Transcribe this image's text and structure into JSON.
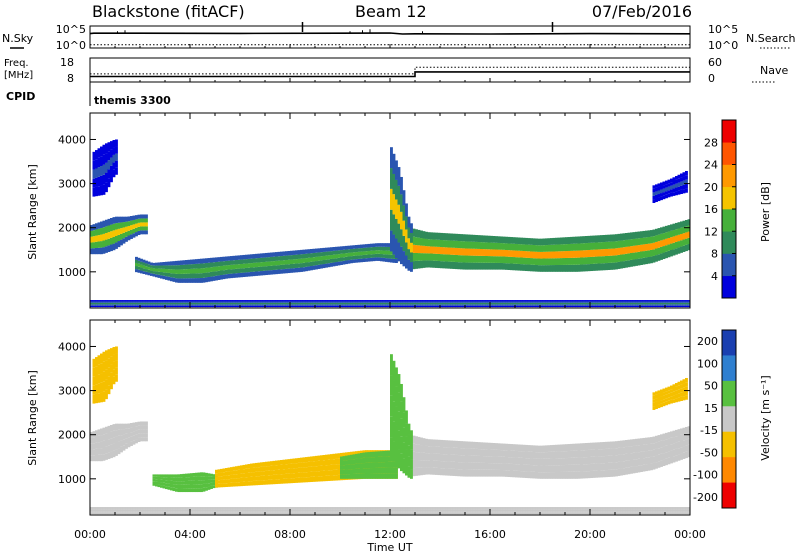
{
  "header": {
    "station": "Blackstone (fitACF)",
    "beam": "Beam 12",
    "date": "07/Feb/2016"
  },
  "status_panel": {
    "left_labels": {
      "nsky": "N.Sky",
      "freq_line1": "Freq.",
      "freq_line2": "[MHz]",
      "cpid": "CPID"
    },
    "right_labels": {
      "nsearch": "N.Search",
      "nave": "Nave"
    },
    "noise_ticks": {
      "top": "10^5",
      "bottom": "10^0"
    },
    "freq_ticks": [
      "18",
      "8"
    ],
    "nave_ticks": [
      "60",
      "0"
    ],
    "cpid_text": "themis 3300"
  },
  "colors": {
    "power": [
      "#0000dd",
      "#2a55b0",
      "#2f8a5a",
      "#46b03a",
      "#f5c400",
      "#ff9900",
      "#ff5500",
      "#ee0000"
    ],
    "velocity": [
      "#1a3fb0",
      "#2f7fcf",
      "#58c040",
      "#c8c8c8",
      "#f5c000",
      "#ff8800",
      "#ee0000"
    ]
  },
  "chart_data": [
    {
      "type": "line",
      "name": "noise-and-freq-status",
      "x_range_hours": [
        0,
        24
      ],
      "series": [
        {
          "name": "N.Sky",
          "x": [
            0.0,
            0.15,
            2.0,
            6.0,
            10.0,
            12.0,
            12.5,
            13.0,
            16.0,
            20.0,
            24.0
          ],
          "y": [
            3.6,
            3.7,
            3.7,
            3.65,
            3.7,
            3.75,
            3.5,
            3.55,
            3.5,
            3.6,
            3.55
          ]
        },
        {
          "name": "N.Search",
          "x": [
            0.0,
            24.0
          ],
          "y": [
            0.8,
            0.8
          ]
        },
        {
          "name": "Freq. [MHz]",
          "x": [
            0.0,
            0.1,
            13.0,
            13.0,
            24.0
          ],
          "y": [
            10.5,
            10.5,
            10.5,
            12.6,
            12.6
          ]
        },
        {
          "name": "Nave",
          "x": [
            0.0,
            13.0,
            13.0,
            24.0
          ],
          "y": [
            22,
            22,
            40,
            40
          ]
        }
      ]
    },
    {
      "type": "heatmap",
      "name": "power",
      "xlabel": "",
      "ylabel": "Slant Range [km]",
      "xlim": [
        0,
        24
      ],
      "ylim": [
        180,
        4600
      ],
      "x_ticks": [
        "00:00",
        "04:00",
        "08:00",
        "12:00",
        "16:00",
        "20:00",
        "00:00"
      ],
      "y_ticks": [
        1000,
        2000,
        3000,
        4000
      ],
      "colorbar": {
        "label": "Power [dB]",
        "ticks": [
          4,
          8,
          12,
          16,
          20,
          24,
          28
        ],
        "range": [
          0,
          32
        ]
      },
      "bands": [
        {
          "t": [
            0.0,
            0.5,
            1.0,
            1.5,
            2.0,
            2.3
          ],
          "lo": [
            1400,
            1400,
            1500,
            1700,
            1850,
            1850
          ],
          "hi": [
            2050,
            2150,
            2250,
            2250,
            2300,
            2300
          ],
          "core": 18
        },
        {
          "t": [
            1.8,
            2.5,
            3.5,
            4.5,
            5.5,
            6.5,
            7.5,
            8.5,
            9.5,
            10.5,
            11.5,
            12.2
          ],
          "lo": [
            1000,
            900,
            750,
            750,
            850,
            900,
            950,
            1000,
            1100,
            1200,
            1250,
            1200
          ],
          "hi": [
            1350,
            1200,
            1250,
            1300,
            1350,
            1400,
            1450,
            1500,
            1550,
            1600,
            1650,
            1650
          ],
          "core": 14
        },
        {
          "t": [
            12.8,
            13.5,
            15.0,
            16.5,
            18.0,
            19.5,
            21.0,
            22.5,
            24.0
          ],
          "lo": [
            1050,
            1100,
            1050,
            1050,
            1000,
            1000,
            1050,
            1200,
            1500
          ],
          "hi": [
            2000,
            1900,
            1850,
            1800,
            1750,
            1800,
            1850,
            1950,
            2200
          ],
          "core": 22
        },
        {
          "t": [
            12.0,
            12.4,
            12.8
          ],
          "lo": [
            1500,
            1200,
            1000
          ],
          "hi": [
            3900,
            3300,
            2100
          ],
          "core": 16
        },
        {
          "t": [
            0.1,
            0.6,
            1.0
          ],
          "lo": [
            2700,
            2750,
            3200
          ],
          "hi": [
            3700,
            3900,
            4000
          ],
          "core": 5
        },
        {
          "t": [
            22.5,
            23.2,
            23.9
          ],
          "lo": [
            2550,
            2700,
            2800
          ],
          "hi": [
            2950,
            3100,
            3300
          ],
          "core": 5
        },
        {
          "t": [
            0.0,
            24.0
          ],
          "lo": [
            200,
            200
          ],
          "hi": [
            360,
            360
          ],
          "core": 9
        }
      ]
    },
    {
      "type": "heatmap",
      "name": "velocity",
      "xlabel": "Time UT",
      "ylabel": "Slant Range [km]",
      "xlim": [
        0,
        24
      ],
      "ylim": [
        180,
        4600
      ],
      "x_ticks": [
        "00:00",
        "04:00",
        "08:00",
        "12:00",
        "16:00",
        "20:00",
        "00:00"
      ],
      "y_ticks": [
        1000,
        2000,
        3000,
        4000
      ],
      "colorbar": {
        "label": "Velocity [m s⁻¹]",
        "ticks": [
          "200",
          "100",
          "50",
          "15",
          "-15",
          "-50",
          "-100",
          "-200"
        ]
      },
      "bands": [
        {
          "t": [
            0.0,
            0.5,
            1.0,
            1.5,
            2.0,
            2.3
          ],
          "lo": [
            1400,
            1400,
            1500,
            1700,
            1850,
            1850
          ],
          "hi": [
            2050,
            2150,
            2250,
            2250,
            2300,
            2300
          ],
          "v": 0
        },
        {
          "t": [
            2.5,
            3.5,
            4.5,
            5.0
          ],
          "lo": [
            850,
            700,
            700,
            800
          ],
          "hi": [
            1100,
            1100,
            1150,
            1100
          ],
          "v": 40
        },
        {
          "t": [
            5.0,
            6.5,
            8.0,
            9.5,
            11.0,
            12.2
          ],
          "lo": [
            800,
            850,
            900,
            950,
            1000,
            1000
          ],
          "hi": [
            1200,
            1350,
            1450,
            1550,
            1650,
            1650
          ],
          "v": -40
        },
        {
          "t": [
            10.0,
            11.0,
            12.2
          ],
          "lo": [
            1000,
            1000,
            1000
          ],
          "hi": [
            1500,
            1600,
            1650
          ],
          "v": 40
        },
        {
          "t": [
            12.8,
            13.5,
            15.0,
            16.5,
            18.0,
            19.5,
            21.0,
            22.5,
            24.0
          ],
          "lo": [
            1050,
            1100,
            1050,
            1050,
            1000,
            1000,
            1050,
            1200,
            1500
          ],
          "hi": [
            2000,
            1900,
            1850,
            1800,
            1750,
            1800,
            1850,
            1950,
            2200
          ],
          "v": 0
        },
        {
          "t": [
            12.0,
            12.4,
            12.8
          ],
          "lo": [
            1500,
            1200,
            1000
          ],
          "hi": [
            3900,
            3300,
            2100
          ],
          "v": 30
        },
        {
          "t": [
            0.1,
            0.6,
            1.0
          ],
          "lo": [
            2700,
            2750,
            3200
          ],
          "hi": [
            3700,
            3900,
            4000
          ],
          "v": -60
        },
        {
          "t": [
            22.5,
            23.2,
            23.9
          ],
          "lo": [
            2550,
            2700,
            2800
          ],
          "hi": [
            2950,
            3100,
            3300
          ],
          "v": -60
        },
        {
          "t": [
            0.0,
            24.0
          ],
          "lo": [
            200,
            200
          ],
          "hi": [
            360,
            360
          ],
          "v": 10
        }
      ]
    }
  ]
}
